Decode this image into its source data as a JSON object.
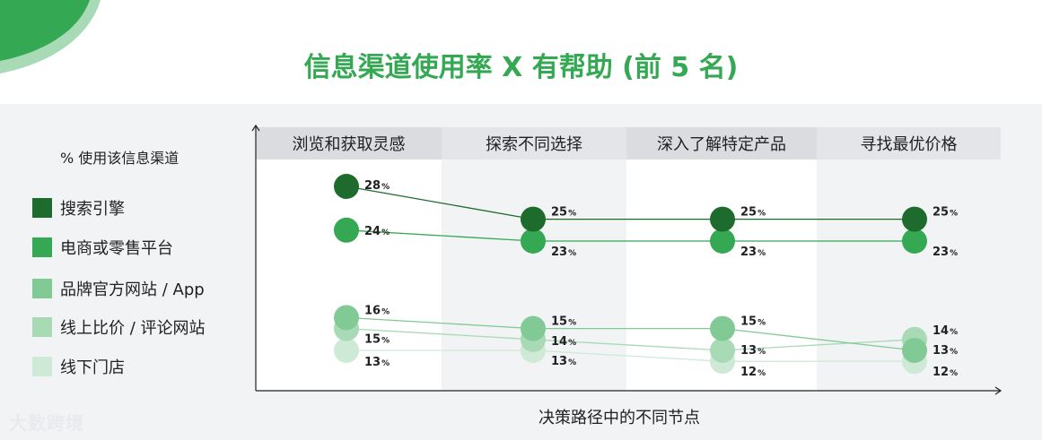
{
  "page": {
    "title": "信息渠道使用率 X 有帮助 (前 5 名)",
    "watermark": "大数跨境"
  },
  "legend": {
    "title": "% 使用该信息渠道"
  },
  "chart_data": {
    "type": "line",
    "title": "信息渠道使用率 X 有帮助 (前 5 名)",
    "xlabel": "决策路径中的不同节点",
    "ylabel": "",
    "categories": [
      "浏览和获取灵感",
      "探索不同选择",
      "深入了解特定产品",
      "寻找最优价格"
    ],
    "unit": "%",
    "series": [
      {
        "name": "搜索引擎",
        "color": "#1e6b2e",
        "values": [
          28,
          25,
          25,
          25
        ]
      },
      {
        "name": "电商或零售平台",
        "color": "#34a853",
        "values": [
          24,
          23,
          23,
          23
        ]
      },
      {
        "name": "品牌官方网站 / App",
        "color": "#81c995",
        "values": [
          16,
          15,
          15,
          13
        ]
      },
      {
        "name": "线上比价 / 评论网站",
        "color": "#a8dab5",
        "values": [
          15,
          14,
          13,
          14
        ]
      },
      {
        "name": "线下门店",
        "color": "#ceead6",
        "values": [
          13,
          13,
          12,
          12
        ]
      }
    ],
    "grid": false,
    "legend_position": "left"
  }
}
